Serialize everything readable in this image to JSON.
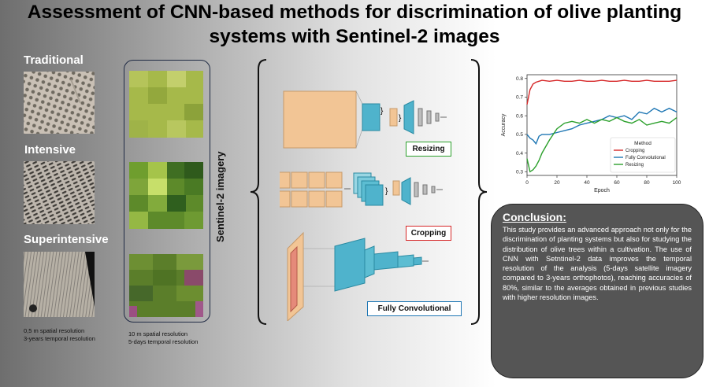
{
  "title": {
    "line1": "Assessment of CNN-based methods for discrimination of olive planting",
    "line2": "systems with Sentinel-2 images"
  },
  "planting_systems": [
    {
      "label": "Traditional"
    },
    {
      "label": "Intensive"
    },
    {
      "label": "Superintensive"
    }
  ],
  "orthophoto_resolution": {
    "line1": "0,5 m spatial resolution",
    "line2": "3-years temporal resolution"
  },
  "sentinel_resolution": {
    "line1": "10 m spatial resolution",
    "line2": "5-days temporal resolution"
  },
  "sentinel_label": "Sentinel-2 imagery",
  "methods": {
    "resizing": "Resizing",
    "cropping": "Cropping",
    "fully_convolutional": "Fully Convolutional"
  },
  "colors": {
    "resizing": "#2ca02c",
    "cropping": "#d62728",
    "fully_convolutional": "#1f77b4",
    "input_block": "#f2c595",
    "feature_block": "#4fb3cc"
  },
  "conclusion": {
    "heading": "Conclusion:",
    "text": "This study provides an advanced approach not only for the discrimination of planting systems but also for studying the distribution of olive trees within a cultivation. The use of CNN with Setntinel-2 data improves the temporal resolution of the analysis (5-days satellite imagery compared to 3-years orthophotos), reaching accuracies of 80%, similar to the averages obtained in previous studies with higher resolution images."
  },
  "chart_data": {
    "type": "line",
    "title": "",
    "xlabel": "Epoch",
    "ylabel": "Accuracy",
    "xlim": [
      0,
      100
    ],
    "ylim": [
      0.28,
      0.82
    ],
    "xticks": [
      0,
      20,
      40,
      60,
      80,
      100
    ],
    "yticks": [
      0.3,
      0.4,
      0.5,
      0.6,
      0.7,
      0.8
    ],
    "grid": false,
    "legend": {
      "title": "Method",
      "position": "lower-right"
    },
    "x": [
      0,
      2,
      4,
      6,
      8,
      10,
      15,
      20,
      25,
      30,
      35,
      40,
      45,
      50,
      55,
      60,
      65,
      70,
      75,
      80,
      85,
      90,
      95,
      100
    ],
    "series": [
      {
        "name": "Cropping",
        "color": "#d62728",
        "values": [
          0.66,
          0.74,
          0.77,
          0.78,
          0.785,
          0.79,
          0.785,
          0.79,
          0.785,
          0.785,
          0.79,
          0.785,
          0.785,
          0.79,
          0.785,
          0.785,
          0.79,
          0.785,
          0.785,
          0.79,
          0.785,
          0.785,
          0.785,
          0.79
        ]
      },
      {
        "name": "Fully Convolutional",
        "color": "#1f77b4",
        "values": [
          0.5,
          0.48,
          0.47,
          0.45,
          0.49,
          0.5,
          0.5,
          0.51,
          0.52,
          0.53,
          0.55,
          0.56,
          0.57,
          0.58,
          0.6,
          0.59,
          0.6,
          0.58,
          0.62,
          0.61,
          0.64,
          0.62,
          0.64,
          0.62
        ]
      },
      {
        "name": "Resizing",
        "color": "#2ca02c",
        "values": [
          0.37,
          0.3,
          0.31,
          0.33,
          0.36,
          0.4,
          0.47,
          0.53,
          0.56,
          0.57,
          0.56,
          0.58,
          0.56,
          0.58,
          0.57,
          0.59,
          0.57,
          0.56,
          0.58,
          0.55,
          0.56,
          0.57,
          0.56,
          0.59
        ]
      }
    ]
  }
}
